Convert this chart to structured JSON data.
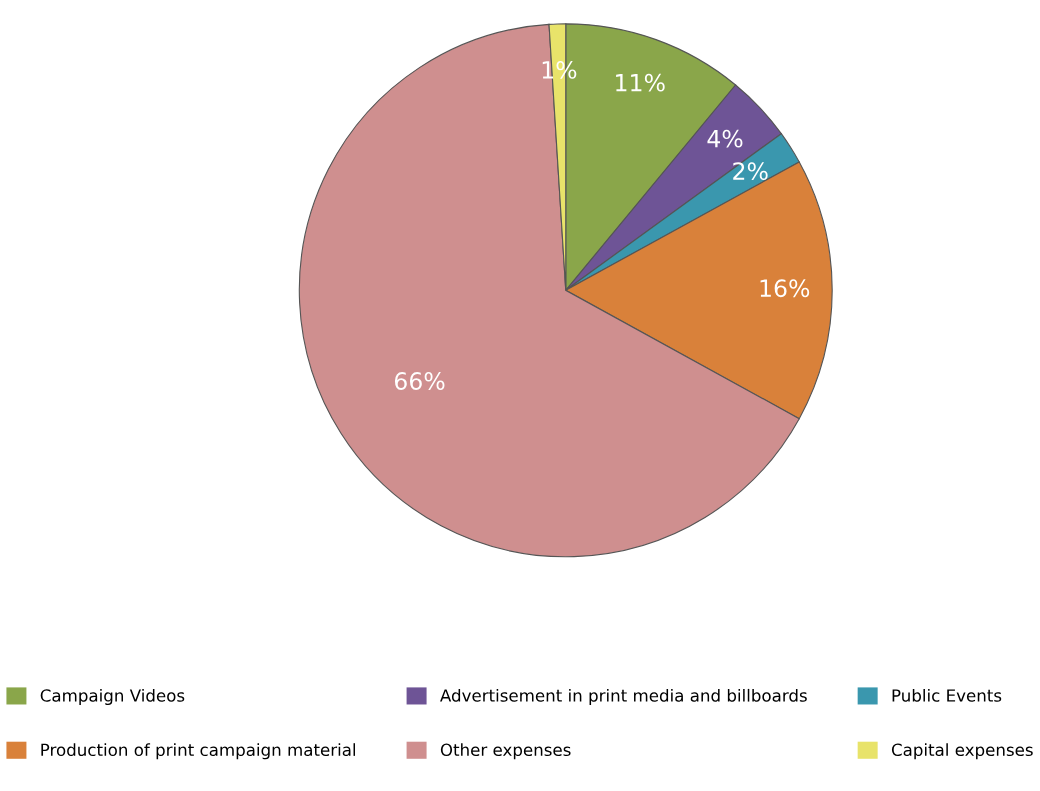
{
  "chart_data": {
    "type": "pie",
    "categories": [
      "Campaign Videos",
      "Advertisement in print media and billboards",
      "Public Events",
      "Production of print campaign material",
      "Other expenses",
      "Capital expenses"
    ],
    "values": [
      11,
      4,
      2,
      16,
      66,
      1
    ],
    "colors": [
      "#8aa64a",
      "#6e5496",
      "#3a97ae",
      "#d9813a",
      "#cf8f8f",
      "#e8e36a"
    ],
    "value_labels": [
      "11%",
      "4%",
      "2%",
      "16%",
      "66%",
      "1%"
    ],
    "legend": "bottom"
  }
}
